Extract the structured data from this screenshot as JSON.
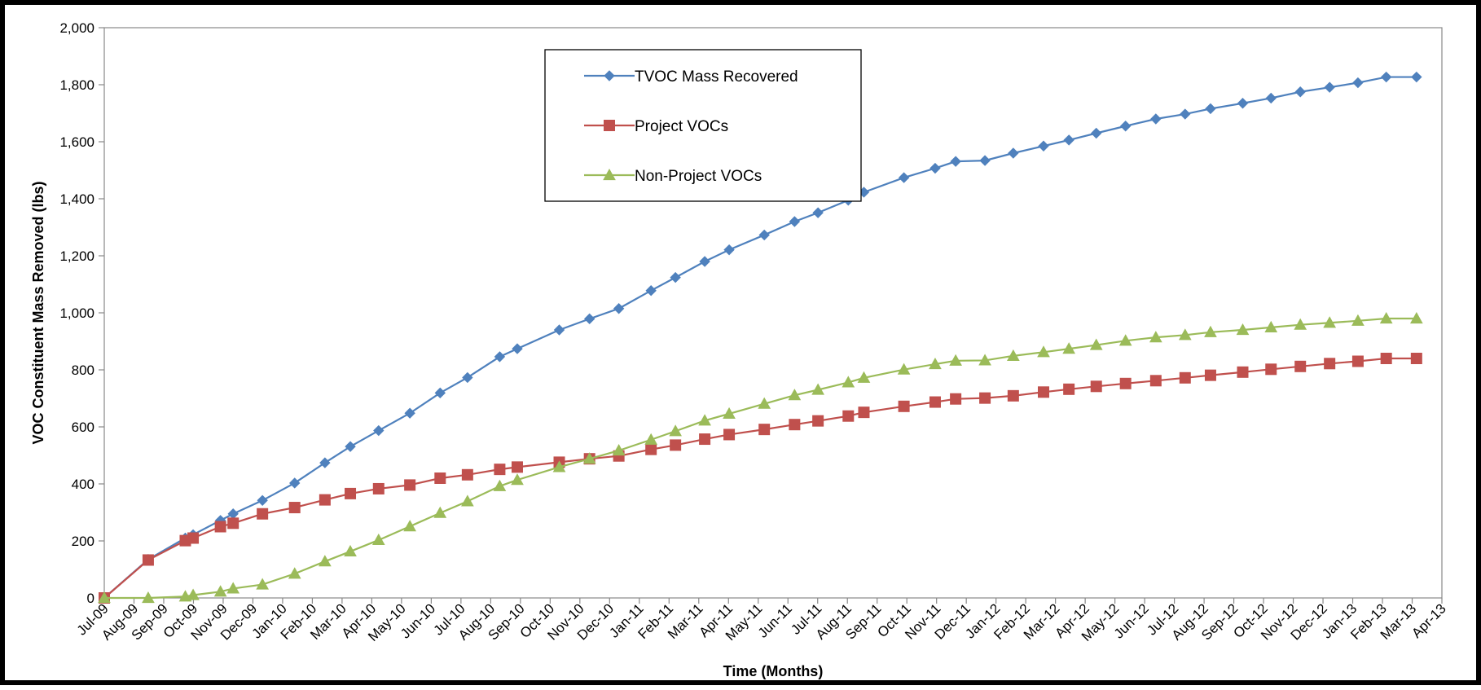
{
  "colors": {
    "tvoc": "#4F81BD",
    "project": "#C0504D",
    "non_project": "#9BBB59",
    "axis": "#888888",
    "border": "#000000"
  },
  "chart_data": {
    "type": "line",
    "xlabel": "Time (Months)",
    "ylabel": "VOC Constituent Mass Removed (lbs)",
    "ylim": [
      0,
      2000
    ],
    "y_ticks": [
      0,
      200,
      400,
      600,
      800,
      1000,
      1200,
      1400,
      1600,
      1800,
      2000
    ],
    "y_tick_labels": [
      "0",
      "200",
      "400",
      "600",
      "800",
      "1,000",
      "1,200",
      "1,400",
      "1,600",
      "1,800",
      "2,000"
    ],
    "x_range": [
      "2009-07-01",
      "2013-04-01"
    ],
    "categories": [
      "Jul-09",
      "Aug-09",
      "Sep-09",
      "Oct-09",
      "Nov-09",
      "Dec-09",
      "Jan-10",
      "Feb-10",
      "Mar-10",
      "Apr-10",
      "May-10",
      "Jun-10",
      "Jul-10",
      "Aug-10",
      "Sep-10",
      "Oct-10",
      "Nov-10",
      "Dec-10",
      "Jan-11",
      "Feb-11",
      "Mar-11",
      "Apr-11",
      "May-11",
      "Jun-11",
      "Jul-11",
      "Aug-11",
      "Sep-11",
      "Oct-11",
      "Nov-11",
      "Dec-11",
      "Jan-12",
      "Feb-12",
      "Mar-12",
      "Apr-12",
      "May-12",
      "Jun-12",
      "Jul-12",
      "Aug-12",
      "Sep-12",
      "Oct-12",
      "Nov-12",
      "Dec-12",
      "Jan-13",
      "Feb-13",
      "Mar-13",
      "Apr-13"
    ],
    "legend_position": "top-center",
    "grid": false,
    "x": [
      "2009-07-01",
      "2009-08-15",
      "2009-09-22",
      "2009-09-30",
      "2009-10-28",
      "2009-11-10",
      "2009-12-10",
      "2010-01-12",
      "2010-02-12",
      "2010-03-10",
      "2010-04-08",
      "2010-05-10",
      "2010-06-10",
      "2010-07-08",
      "2010-08-10",
      "2010-08-28",
      "2010-10-10",
      "2010-11-10",
      "2010-12-10",
      "2011-01-12",
      "2011-02-06",
      "2011-03-08",
      "2011-04-02",
      "2011-05-08",
      "2011-06-08",
      "2011-07-02",
      "2011-08-02",
      "2011-08-18",
      "2011-09-28",
      "2011-10-30",
      "2011-11-20",
      "2011-12-20",
      "2012-01-18",
      "2012-02-18",
      "2012-03-15",
      "2012-04-12",
      "2012-05-12",
      "2012-06-12",
      "2012-07-12",
      "2012-08-07",
      "2012-09-09",
      "2012-10-08",
      "2012-11-07",
      "2012-12-07",
      "2013-01-05",
      "2013-02-03",
      "2013-03-06"
    ],
    "series": [
      {
        "name": "TVOC Mass Recovered",
        "marker": "diamond",
        "values": [
          0,
          135,
          210,
          222,
          272,
          295,
          342,
          403,
          474,
          531,
          587,
          648,
          719,
          773,
          846,
          874,
          940,
          979,
          1015,
          1078,
          1124,
          1180,
          1221,
          1273,
          1320,
          1351,
          1395,
          1423,
          1474,
          1507,
          1531,
          1534,
          1560,
          1585,
          1606,
          1630,
          1655,
          1680,
          1697,
          1716,
          1735,
          1753,
          1775,
          1791,
          1807,
          1827,
          1827
        ]
      },
      {
        "name": "Project VOCs",
        "marker": "square",
        "values": [
          0,
          133,
          201,
          210,
          250,
          262,
          295,
          317,
          344,
          366,
          383,
          396,
          420,
          432,
          451,
          459,
          476,
          488,
          498,
          521,
          536,
          557,
          573,
          591,
          608,
          621,
          638,
          651,
          672,
          687,
          698,
          701,
          709,
          722,
          732,
          742,
          752,
          762,
          772,
          781,
          792,
          802,
          812,
          822,
          830,
          840,
          840
        ]
      },
      {
        "name": "Non-Project VOCs",
        "marker": "triangle",
        "values": [
          0,
          0,
          5,
          10,
          22,
          33,
          47,
          85,
          128,
          163,
          203,
          251,
          298,
          339,
          392,
          414,
          459,
          488,
          517,
          555,
          585,
          622,
          646,
          681,
          711,
          730,
          756,
          772,
          801,
          820,
          832,
          833,
          849,
          862,
          874,
          887,
          902,
          914,
          922,
          932,
          940,
          949,
          958,
          965,
          972,
          980,
          980
        ]
      }
    ]
  }
}
